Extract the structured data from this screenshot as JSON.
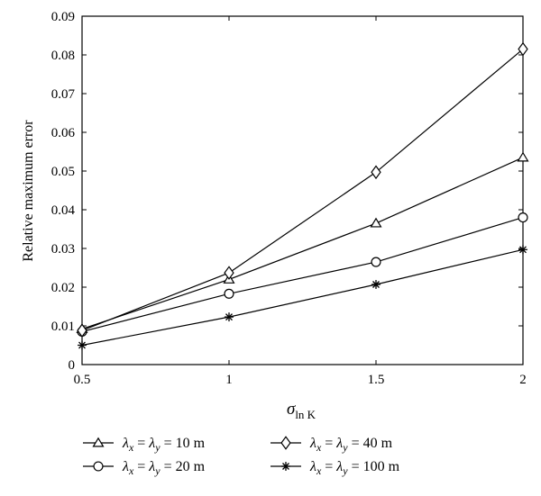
{
  "chart_data": {
    "type": "line",
    "xlabel": "σ",
    "xlabel_sub": "ln K",
    "ylabel": "Relative maximum error",
    "xlim": [
      0.5,
      2
    ],
    "ylim": [
      0,
      0.09
    ],
    "x_ticks": [
      "0.5",
      "1",
      "1.5",
      "2"
    ],
    "x_tick_values": [
      0.5,
      1,
      1.5,
      2
    ],
    "y_ticks": [
      "0",
      "0.01",
      "0.02",
      "0.03",
      "0.04",
      "0.05",
      "0.06",
      "0.07",
      "0.08",
      "0.09"
    ],
    "y_tick_values": [
      0,
      0.01,
      0.02,
      0.03,
      0.04,
      0.05,
      0.06,
      0.07,
      0.08,
      0.09
    ],
    "grid": false,
    "legend_position": "bottom",
    "x": [
      0.5,
      1,
      1.5,
      2
    ],
    "series": [
      {
        "marker": "triangle",
        "values": [
          0.0092,
          0.022,
          0.0365,
          0.0535
        ]
      },
      {
        "marker": "circle",
        "values": [
          0.0085,
          0.0183,
          0.0265,
          0.038
        ]
      },
      {
        "marker": "diamond",
        "values": [
          0.0088,
          0.0237,
          0.0497,
          0.0815
        ]
      },
      {
        "marker": "star",
        "values": [
          0.005,
          0.0123,
          0.0207,
          0.0297
        ]
      }
    ],
    "legend": [
      {
        "marker": "triangle",
        "lambda": "λ",
        "sub_x": "x",
        "sub_y": "y",
        "eq": "=",
        "value": "10 m"
      },
      {
        "marker": "diamond",
        "lambda": "λ",
        "sub_x": "x",
        "sub_y": "y",
        "eq": "=",
        "value": "40 m"
      },
      {
        "marker": "circle",
        "lambda": "λ",
        "sub_x": "x",
        "sub_y": "y",
        "eq": "=",
        "value": "20 m"
      },
      {
        "marker": "star",
        "lambda": "λ",
        "sub_x": "x",
        "sub_y": "y",
        "eq": "=",
        "value": "100 m"
      }
    ]
  }
}
